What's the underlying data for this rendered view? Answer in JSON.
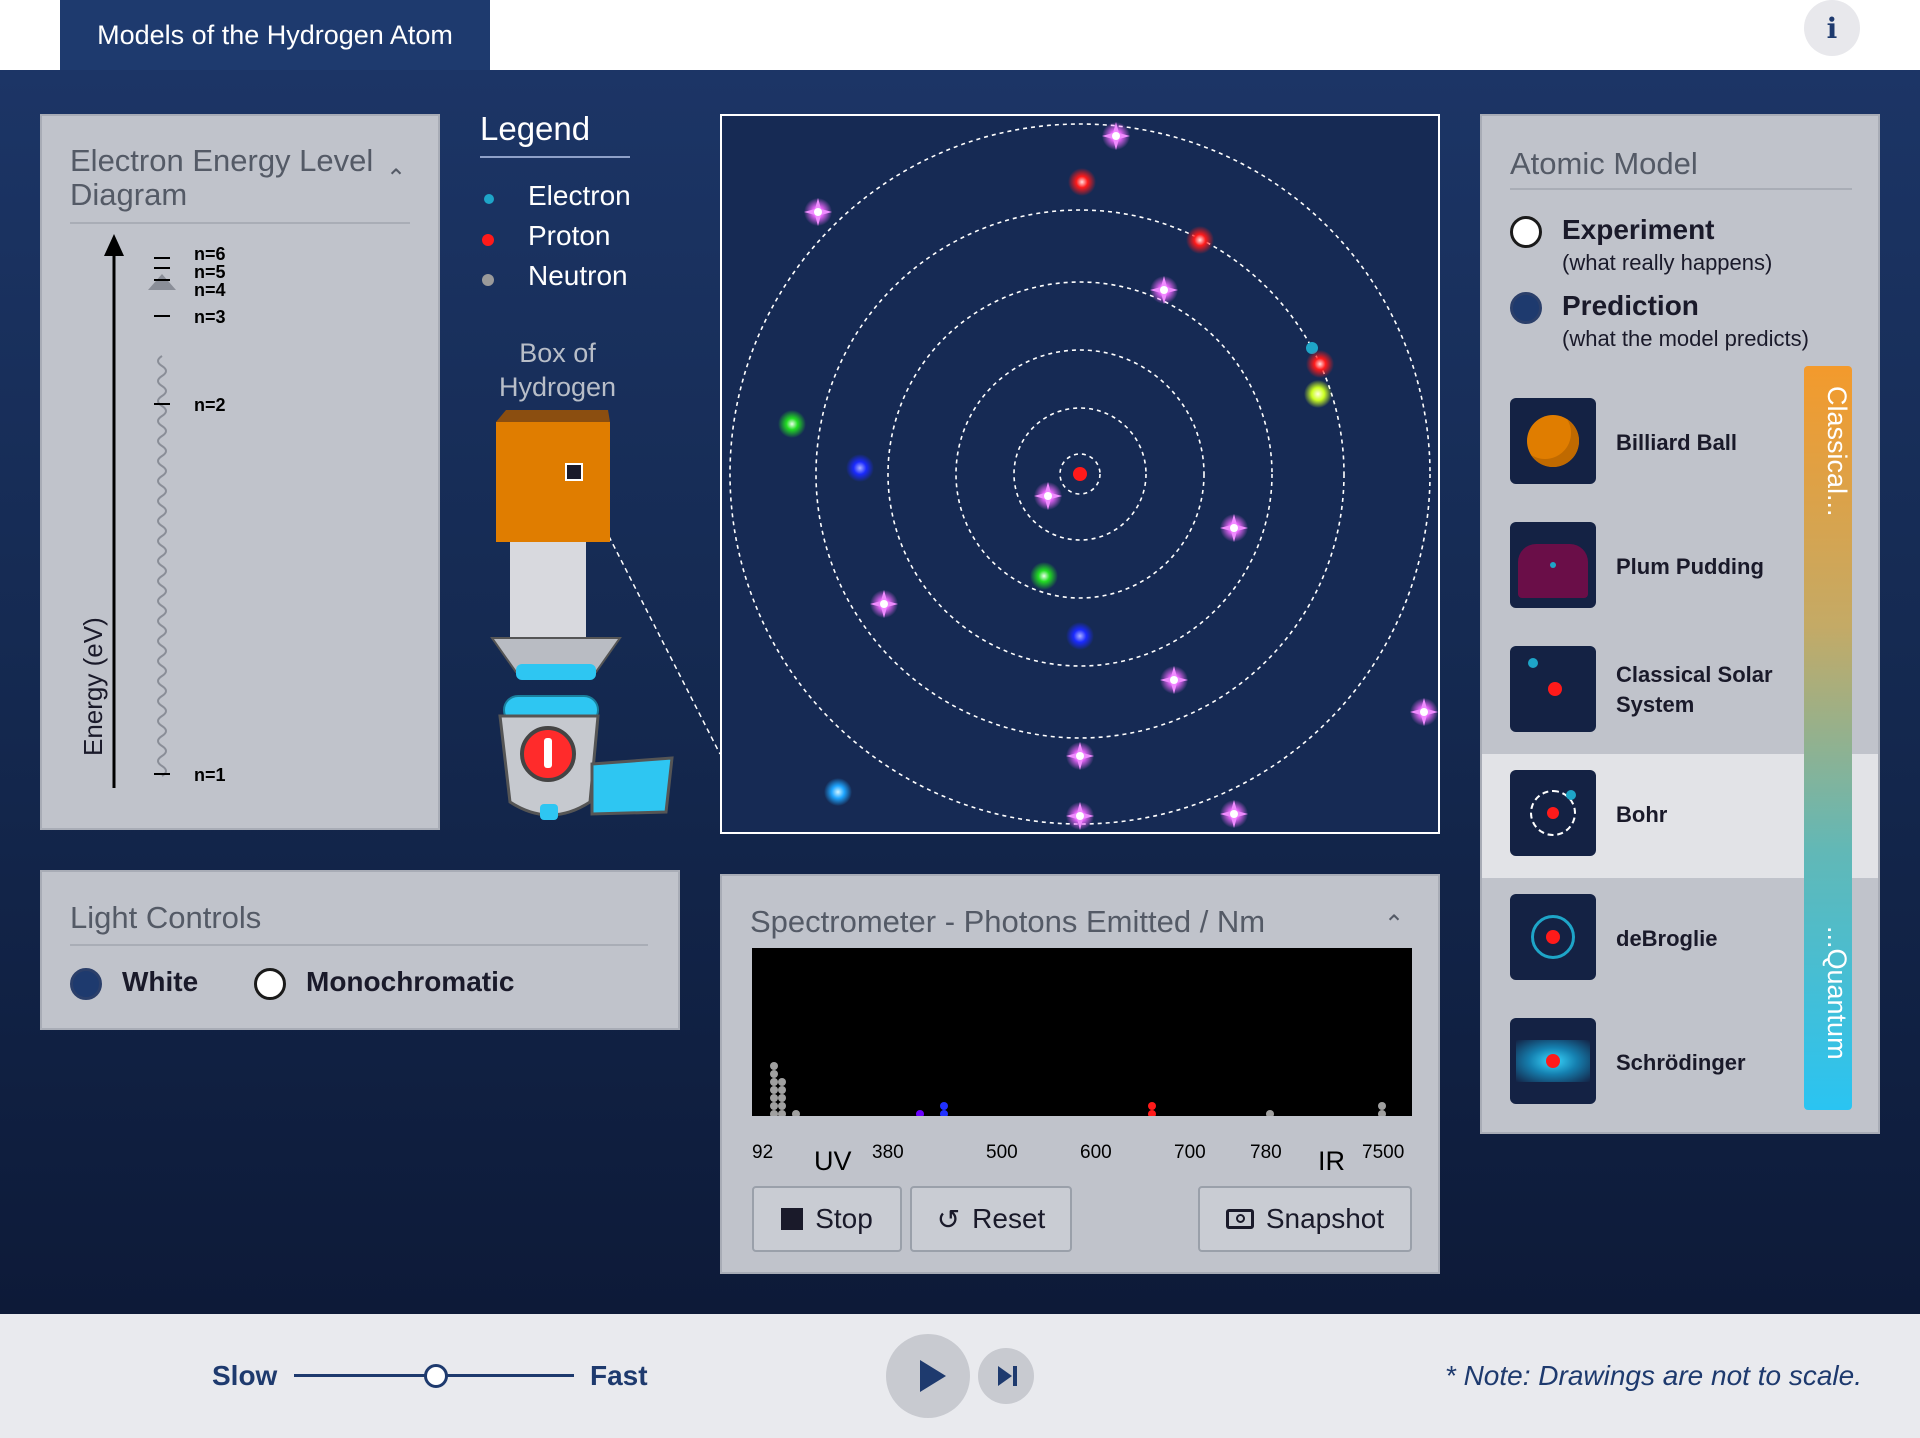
{
  "app": {
    "title": "Models of the Hydrogen Atom",
    "info_icon": "info-icon",
    "info_glyph": "i"
  },
  "energy_diagram": {
    "title": "Electron Energy Level Diagram",
    "axis_label": "Energy (eV)",
    "levels": [
      "n=6",
      "n=5",
      "n=4",
      "n=3",
      "n=2",
      "n=1"
    ]
  },
  "legend": {
    "title": "Legend",
    "items": [
      {
        "label": "Electron",
        "color": "#1ea5c8"
      },
      {
        "label": "Proton",
        "color": "#ff1a1a"
      },
      {
        "label": "Neutron",
        "color": "#9a9a9a"
      }
    ]
  },
  "box": {
    "label_line1": "Box of",
    "label_line2": "Hydrogen"
  },
  "atomic_model": {
    "title": "Atomic Model",
    "modes": [
      {
        "label": "Experiment",
        "sub": "(what really happens)",
        "selected": false
      },
      {
        "label": "Prediction",
        "sub": "(what the model predicts)",
        "selected": true
      }
    ],
    "models": [
      {
        "label": "Billiard Ball",
        "icon": "billiard-ball-icon"
      },
      {
        "label": "Plum Pudding",
        "icon": "plum-pudding-icon"
      },
      {
        "label": "Classical Solar System",
        "icon": "solar-system-icon"
      },
      {
        "label": "Bohr",
        "icon": "bohr-icon",
        "selected": true
      },
      {
        "label": "deBroglie",
        "icon": "debroglie-icon"
      },
      {
        "label": "Schrödinger",
        "icon": "schrodinger-icon"
      }
    ],
    "scale_top": "Classical...",
    "scale_bottom": "...Quantum"
  },
  "light_controls": {
    "title": "Light Controls",
    "options": [
      {
        "label": "White",
        "selected": true
      },
      {
        "label": "Monochromatic",
        "selected": false
      }
    ]
  },
  "spectrometer": {
    "title": "Spectrometer - Photons Emitted / Nm",
    "ticks": [
      "92",
      "380",
      "500",
      "600",
      "700",
      "780",
      "7500"
    ],
    "region_uv": "UV",
    "region_ir": "IR",
    "buttons": {
      "stop": "Stop",
      "reset": "Reset",
      "snapshot": "Snapshot"
    }
  },
  "bottom_bar": {
    "speed_slow": "Slow",
    "speed_fast": "Fast",
    "speed_value": 0.45,
    "note": "* Note: Drawings are not to scale."
  },
  "colors": {
    "accent": "#1e3a6e",
    "panel": "#c0c3cb"
  }
}
